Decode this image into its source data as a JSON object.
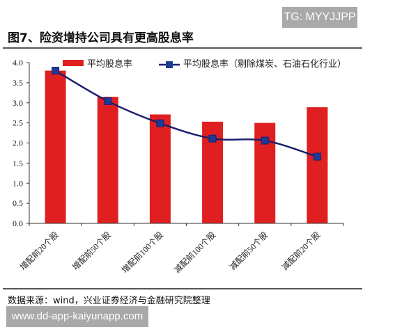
{
  "watermark_top": "TG: MYYJJPP",
  "figure_title": "图7、险资增持公司具有更高股息率",
  "source": "数据来源：wind，兴业证券经济与金融研究院整理",
  "watermark_bottom": "www.dd-app-kaiyunapp.com",
  "chart_data": {
    "type": "bar",
    "categories": [
      "增配前20个股",
      "增配前50个股",
      "增配前100个股",
      "减配前100个股",
      "减配前50个股",
      "减配前20个股"
    ],
    "series": [
      {
        "name": "平均股息率",
        "type": "bar",
        "color": "#e02020",
        "values": [
          3.8,
          3.15,
          2.71,
          2.53,
          2.5,
          2.89
        ]
      },
      {
        "name": "平均股息率（剔除煤炭、石油石化行业）",
        "type": "line",
        "color": "#1a1f6e",
        "values": [
          3.8,
          3.04,
          2.49,
          2.11,
          2.06,
          1.66
        ]
      }
    ],
    "yticks": [
      "0.0",
      "0.5",
      "1.0",
      "1.5",
      "2.0",
      "2.5",
      "3.0",
      "3.5",
      "4.0"
    ],
    "ylim": [
      0,
      4.0
    ],
    "grid": false,
    "legend": "top"
  }
}
